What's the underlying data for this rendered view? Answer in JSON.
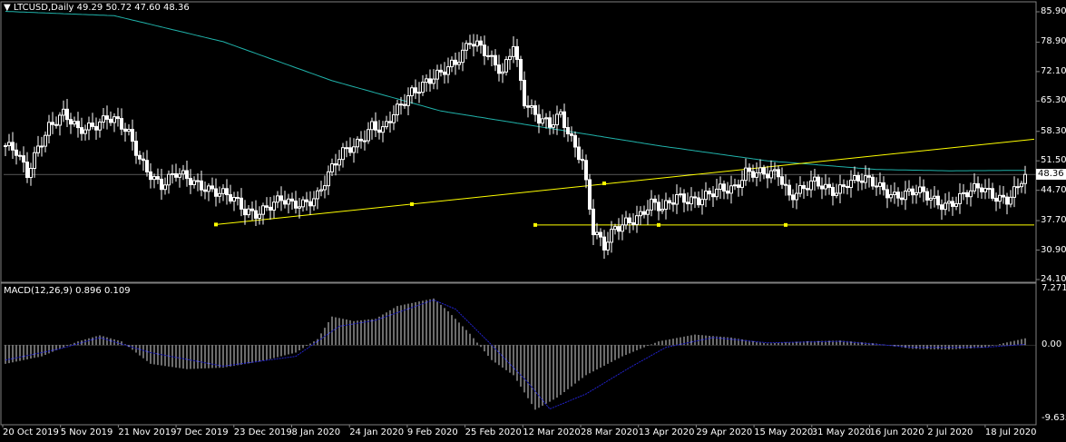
{
  "header": {
    "symbol_label": "LTCUSD,Daily",
    "ohlc": "49.29 50.72 47.60 48.36",
    "menu_glyph": "▼"
  },
  "macd_header": {
    "label": "MACD(12,26,9)",
    "values": "0.896 0.109"
  },
  "price_axis": {
    "ticks": [
      "85.90",
      "78.90",
      "72.10",
      "65.30",
      "58.30",
      "51.50",
      "44.70",
      "37.70",
      "30.90",
      "24.10"
    ],
    "current_price": "48.36"
  },
  "macd_axis": {
    "ticks": [
      "7.271",
      "0.00",
      "-9.635"
    ]
  },
  "time_axis": {
    "labels": [
      "20 Oct 2019",
      "5 Nov 2019",
      "21 Nov 2019",
      "7 Dec 2019",
      "23 Dec 2019",
      "8 Jan 2020",
      "24 Jan 2020",
      "9 Feb 2020",
      "25 Feb 2020",
      "12 Mar 2020",
      "28 Mar 2020",
      "13 Apr 2020",
      "29 Apr 2020",
      "15 May 2020",
      "31 May 2020",
      "16 Jun 2020",
      "2 Jul 2020",
      "18 Jul 2020"
    ]
  },
  "colors": {
    "background": "#000000",
    "candle_body": "#ffffff",
    "moving_average": "#20b2aa",
    "trendline": "#ffff00",
    "macd_signal": "#2222cc",
    "frame": "#808080"
  },
  "chart_data": {
    "type": "candlestick",
    "symbol": "LTCUSD",
    "timeframe": "Daily",
    "ylim": [
      24.1,
      85.9
    ],
    "price_anchors": [
      [
        0,
        55
      ],
      [
        3,
        53
      ],
      [
        6,
        48
      ],
      [
        9,
        55
      ],
      [
        12,
        60
      ],
      [
        16,
        62
      ],
      [
        20,
        58
      ],
      [
        24,
        60
      ],
      [
        28,
        62
      ],
      [
        31,
        60
      ],
      [
        34,
        57
      ],
      [
        37,
        52
      ],
      [
        40,
        49
      ],
      [
        43,
        46
      ],
      [
        47,
        48
      ],
      [
        51,
        47
      ],
      [
        55,
        46
      ],
      [
        59,
        44
      ],
      [
        63,
        42
      ],
      [
        66,
        40
      ],
      [
        69,
        40
      ],
      [
        72,
        41
      ],
      [
        76,
        42
      ],
      [
        79,
        41
      ],
      [
        82,
        42
      ],
      [
        86,
        44
      ],
      [
        89,
        48
      ],
      [
        93,
        53
      ],
      [
        97,
        56
      ],
      [
        101,
        60
      ],
      [
        104,
        58
      ],
      [
        108,
        63
      ],
      [
        112,
        68
      ],
      [
        116,
        70
      ],
      [
        120,
        71
      ],
      [
        124,
        74
      ],
      [
        128,
        80
      ],
      [
        131,
        78
      ],
      [
        134,
        74
      ],
      [
        137,
        71
      ],
      [
        140,
        79
      ],
      [
        143,
        66
      ],
      [
        147,
        61
      ],
      [
        150,
        59
      ],
      [
        153,
        62
      ],
      [
        156,
        57
      ],
      [
        159,
        52
      ],
      [
        162,
        35
      ],
      [
        165,
        31
      ],
      [
        168,
        36
      ],
      [
        171,
        38
      ],
      [
        175,
        39
      ],
      [
        178,
        41
      ],
      [
        181,
        40
      ],
      [
        185,
        44
      ],
      [
        188,
        43
      ],
      [
        191,
        42
      ],
      [
        194,
        43
      ],
      [
        197,
        45
      ],
      [
        201,
        46
      ],
      [
        204,
        49
      ],
      [
        207,
        48
      ],
      [
        210,
        48
      ],
      [
        213,
        49
      ],
      [
        216,
        44
      ],
      [
        220,
        45
      ],
      [
        223,
        46
      ],
      [
        226,
        45
      ],
      [
        229,
        45
      ],
      [
        232,
        47
      ],
      [
        235,
        47
      ],
      [
        239,
        46
      ],
      [
        242,
        45
      ],
      [
        245,
        44
      ],
      [
        248,
        44
      ],
      [
        251,
        44
      ],
      [
        254,
        43
      ],
      [
        257,
        42
      ],
      [
        260,
        42
      ],
      [
        263,
        43
      ],
      [
        266,
        44
      ],
      [
        269,
        45
      ],
      [
        272,
        44
      ],
      [
        276,
        43
      ],
      [
        279,
        45
      ],
      [
        281,
        48.36
      ]
    ],
    "moving_average": [
      [
        0,
        86
      ],
      [
        30,
        85
      ],
      [
        60,
        79
      ],
      [
        90,
        70
      ],
      [
        120,
        63
      ],
      [
        150,
        59
      ],
      [
        180,
        55
      ],
      [
        210,
        51.5
      ],
      [
        240,
        49.5
      ],
      [
        260,
        49.2
      ],
      [
        281,
        49.3
      ]
    ],
    "trendlines": [
      {
        "points": [
          [
            58,
            36.8
          ],
          [
            112,
            41.5
          ],
          [
            165,
            46.3
          ],
          [
            281,
            56.5
          ]
        ]
      },
      {
        "points": [
          [
            146,
            36.7
          ],
          [
            180,
            36.7
          ],
          [
            215,
            36.7
          ],
          [
            281,
            36.7
          ]
        ]
      }
    ],
    "macd": {
      "ylim": [
        -9.635,
        7.271
      ],
      "histogram_anchors": [
        [
          0,
          -2.5
        ],
        [
          10,
          -1.5
        ],
        [
          20,
          0.5
        ],
        [
          26,
          1.3
        ],
        [
          32,
          0.5
        ],
        [
          40,
          -2.5
        ],
        [
          50,
          -3.2
        ],
        [
          60,
          -3.0
        ],
        [
          70,
          -2.2
        ],
        [
          80,
          -1.0
        ],
        [
          86,
          0.8
        ],
        [
          90,
          3.8
        ],
        [
          96,
          3.2
        ],
        [
          102,
          3.5
        ],
        [
          108,
          5.2
        ],
        [
          118,
          6.2
        ],
        [
          122,
          4.5
        ],
        [
          128,
          1.5
        ],
        [
          134,
          -2.0
        ],
        [
          140,
          -4.0
        ],
        [
          146,
          -8.6
        ],
        [
          152,
          -7.0
        ],
        [
          160,
          -4.0
        ],
        [
          170,
          -1.5
        ],
        [
          180,
          0.5
        ],
        [
          190,
          1.4
        ],
        [
          200,
          1.0
        ],
        [
          210,
          0.2
        ],
        [
          220,
          0.5
        ],
        [
          230,
          0.6
        ],
        [
          240,
          0.2
        ],
        [
          250,
          -0.5
        ],
        [
          260,
          -0.6
        ],
        [
          270,
          -0.3
        ],
        [
          281,
          0.9
        ]
      ],
      "signal_anchors": [
        [
          0,
          -2.0
        ],
        [
          15,
          -0.5
        ],
        [
          26,
          1.0
        ],
        [
          40,
          -1.0
        ],
        [
          60,
          -2.8
        ],
        [
          80,
          -1.5
        ],
        [
          92,
          2.5
        ],
        [
          102,
          3.3
        ],
        [
          118,
          6.0
        ],
        [
          124,
          4.8
        ],
        [
          134,
          0.0
        ],
        [
          144,
          -5.0
        ],
        [
          150,
          -8.5
        ],
        [
          160,
          -6.5
        ],
        [
          172,
          -3.0
        ],
        [
          182,
          -0.3
        ],
        [
          195,
          1.0
        ],
        [
          210,
          0.3
        ],
        [
          230,
          0.5
        ],
        [
          250,
          -0.3
        ],
        [
          270,
          -0.3
        ],
        [
          281,
          0.1
        ]
      ]
    }
  }
}
